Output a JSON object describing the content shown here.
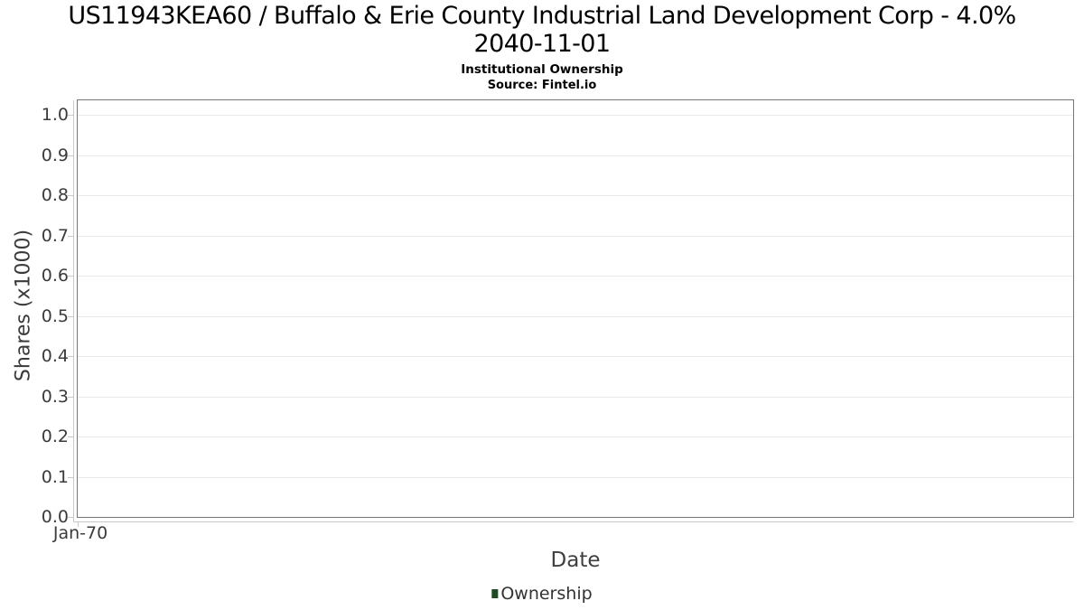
{
  "header": {
    "title_line1": "US11943KEA60 / Buffalo & Erie County Industrial Land Development Corp - 4.0%",
    "title_line2": "2040-11-01",
    "subtitle": "Institutional Ownership",
    "source": "Source: Fintel.io"
  },
  "chart_data": {
    "type": "line",
    "title": "US11943KEA60 / Buffalo & Erie County Industrial Land Development Corp - 4.0% 2040-11-01",
    "subtitle": "Institutional Ownership",
    "source": "Source: Fintel.io",
    "xlabel": "Date",
    "ylabel": "Shares (x1000)",
    "ylim": [
      0.0,
      1.0
    ],
    "yticks": [
      "0.0",
      "0.1",
      "0.2",
      "0.3",
      "0.4",
      "0.5",
      "0.6",
      "0.7",
      "0.8",
      "0.9",
      "1.0"
    ],
    "xticks": [
      "Jan-70"
    ],
    "grid": true,
    "legend_position": "bottom-center",
    "series": [
      {
        "name": "Ownership",
        "color": "#1e4a24",
        "x": [],
        "values": []
      }
    ]
  },
  "colors": {
    "legend_marker": "#1e4a24",
    "gridline": "#e9e9e9",
    "plot_frame": "#767676",
    "axis_line": "#c9c9c9",
    "axis_text": "#3b3b3b",
    "title_text": "#000000"
  }
}
